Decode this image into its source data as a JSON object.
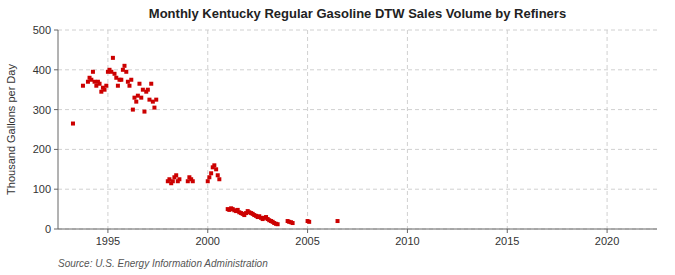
{
  "chart_data": {
    "type": "scatter",
    "title": "Monthly Kentucky Regular Gasoline DTW Sales Volume by Refiners",
    "y_label": "Thousand Gallons per Day",
    "source": "Source: U.S. Energy Information Administration",
    "color": "#cc0000",
    "marker": "square",
    "grid": true,
    "xlim": [
      1992.5,
      2022.5
    ],
    "ylim": [
      0,
      500
    ],
    "xticks": [
      1995,
      2000,
      2005,
      2010,
      2015,
      2020
    ],
    "yticks": [
      0,
      100,
      200,
      300,
      400,
      500
    ],
    "x": [
      1993.25,
      1993.75,
      1994.0,
      1994.08,
      1994.17,
      1994.25,
      1994.33,
      1994.42,
      1994.5,
      1994.58,
      1994.67,
      1994.75,
      1994.83,
      1994.92,
      1995.0,
      1995.08,
      1995.17,
      1995.25,
      1995.33,
      1995.42,
      1995.5,
      1995.58,
      1995.67,
      1995.75,
      1995.83,
      1995.92,
      1996.0,
      1996.08,
      1996.17,
      1996.25,
      1996.33,
      1996.42,
      1996.5,
      1996.58,
      1996.67,
      1996.75,
      1996.83,
      1996.92,
      1997.0,
      1997.08,
      1997.17,
      1997.25,
      1997.33,
      1997.42,
      1998.0,
      1998.08,
      1998.17,
      1998.25,
      1998.33,
      1998.42,
      1998.5,
      1998.58,
      1999.0,
      1999.08,
      1999.17,
      1999.25,
      2000.0,
      2000.08,
      2000.17,
      2000.25,
      2000.33,
      2000.42,
      2000.5,
      2000.58,
      2001.0,
      2001.08,
      2001.17,
      2001.25,
      2001.33,
      2001.42,
      2001.5,
      2001.58,
      2001.67,
      2001.75,
      2001.83,
      2001.92,
      2002.0,
      2002.08,
      2002.17,
      2002.25,
      2002.33,
      2002.42,
      2002.5,
      2002.58,
      2002.67,
      2002.75,
      2002.83,
      2002.92,
      2003.0,
      2003.08,
      2003.17,
      2003.25,
      2003.33,
      2003.42,
      2003.5,
      2004.0,
      2004.08,
      2004.17,
      2004.25,
      2005.0,
      2005.08,
      2006.5
    ],
    "values": [
      265,
      360,
      370,
      380,
      375,
      395,
      370,
      360,
      370,
      365,
      345,
      355,
      350,
      360,
      395,
      400,
      395,
      430,
      390,
      380,
      360,
      375,
      375,
      400,
      410,
      395,
      370,
      360,
      375,
      300,
      330,
      320,
      335,
      365,
      330,
      350,
      295,
      345,
      350,
      325,
      365,
      320,
      305,
      325,
      120,
      125,
      115,
      120,
      130,
      135,
      120,
      125,
      120,
      130,
      125,
      120,
      120,
      130,
      140,
      155,
      160,
      150,
      135,
      125,
      50,
      48,
      52,
      50,
      47,
      45,
      48,
      42,
      40,
      38,
      35,
      40,
      45,
      42,
      40,
      38,
      35,
      33,
      30,
      32,
      28,
      25,
      28,
      30,
      25,
      22,
      20,
      18,
      15,
      13,
      12,
      20,
      18,
      17,
      15,
      20,
      18,
      20
    ]
  }
}
